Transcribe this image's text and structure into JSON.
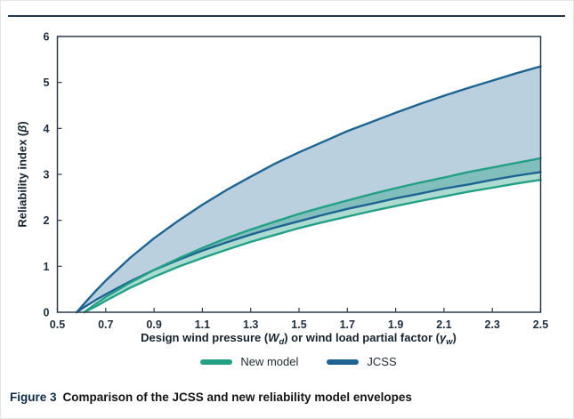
{
  "figure": {
    "caption_label": "Figure 3",
    "caption_text": "Comparison of the JCSS and new reliability model envelopes"
  },
  "style": {
    "rule_color": "#22364a",
    "frame_color": "#2e3d4e"
  },
  "chart_data": {
    "type": "area",
    "title": "",
    "xlabel": "Design wind pressure (Wd) or wind load partial factor (γw)",
    "ylabel": "Reliability index (β)",
    "xlabel_parts": [
      {
        "t": "Design wind pressure ("
      },
      {
        "t": "W",
        "s": "i"
      },
      {
        "t": "d",
        "s": "sub"
      },
      {
        "t": ") or wind load partial factor ("
      },
      {
        "t": "γ",
        "s": "i"
      },
      {
        "t": "w",
        "s": "sub"
      },
      {
        "t": ")"
      }
    ],
    "ylabel_parts": [
      {
        "t": "Reliability index ("
      },
      {
        "t": "β",
        "s": "i"
      },
      {
        "t": ")"
      }
    ],
    "xlim": [
      0.5,
      2.5
    ],
    "ylim": [
      0,
      6
    ],
    "x_ticks": [
      "0.5",
      "0.7",
      "0.9",
      "1.1",
      "1.3",
      "1.5",
      "1.7",
      "1.9",
      "2.1",
      "2.3",
      "2.5"
    ],
    "y_ticks": [
      "0",
      "1",
      "2",
      "3",
      "4",
      "5",
      "6"
    ],
    "grid": false,
    "legend_position": "bottom",
    "legend": [
      {
        "label": "New model",
        "color": "#23a085"
      },
      {
        "label": "JCSS",
        "color": "#1d6493"
      }
    ],
    "series": [
      {
        "name": "JCSS",
        "color": "#1d6493",
        "fill": "rgba(29,100,147,0.30)",
        "x": [
          0.58,
          0.62,
          0.66,
          0.7,
          0.8,
          0.9,
          1.0,
          1.1,
          1.2,
          1.3,
          1.4,
          1.5,
          1.6,
          1.7,
          1.8,
          1.9,
          2.0,
          2.1,
          2.2,
          2.3,
          2.4,
          2.5
        ],
        "upper": [
          0,
          0.24,
          0.47,
          0.69,
          1.18,
          1.61,
          1.99,
          2.34,
          2.66,
          2.95,
          3.23,
          3.48,
          3.71,
          3.94,
          4.14,
          4.34,
          4.53,
          4.71,
          4.88,
          5.04,
          5.2,
          5.35
        ],
        "lower": [
          0,
          0.14,
          0.27,
          0.39,
          0.67,
          0.92,
          1.14,
          1.34,
          1.52,
          1.69,
          1.84,
          1.98,
          2.12,
          2.25,
          2.36,
          2.48,
          2.58,
          2.69,
          2.78,
          2.88,
          2.97,
          3.05
        ]
      },
      {
        "name": "New model",
        "color": "#23a085",
        "fill": "rgba(35,160,133,0.38)",
        "x": [
          0.61,
          0.66,
          0.7,
          0.8,
          0.9,
          1.0,
          1.1,
          1.2,
          1.3,
          1.4,
          1.5,
          1.6,
          1.7,
          1.8,
          1.9,
          2.0,
          2.1,
          2.2,
          2.3,
          2.4,
          2.5
        ],
        "upper": [
          0,
          0.19,
          0.33,
          0.64,
          0.92,
          1.17,
          1.4,
          1.61,
          1.8,
          1.97,
          2.14,
          2.29,
          2.43,
          2.57,
          2.7,
          2.82,
          2.93,
          3.05,
          3.15,
          3.25,
          3.35
        ],
        "lower": [
          0,
          0.13,
          0.25,
          0.53,
          0.77,
          0.99,
          1.18,
          1.36,
          1.53,
          1.68,
          1.83,
          1.96,
          2.08,
          2.2,
          2.31,
          2.42,
          2.52,
          2.62,
          2.71,
          2.8,
          2.88
        ]
      }
    ]
  }
}
